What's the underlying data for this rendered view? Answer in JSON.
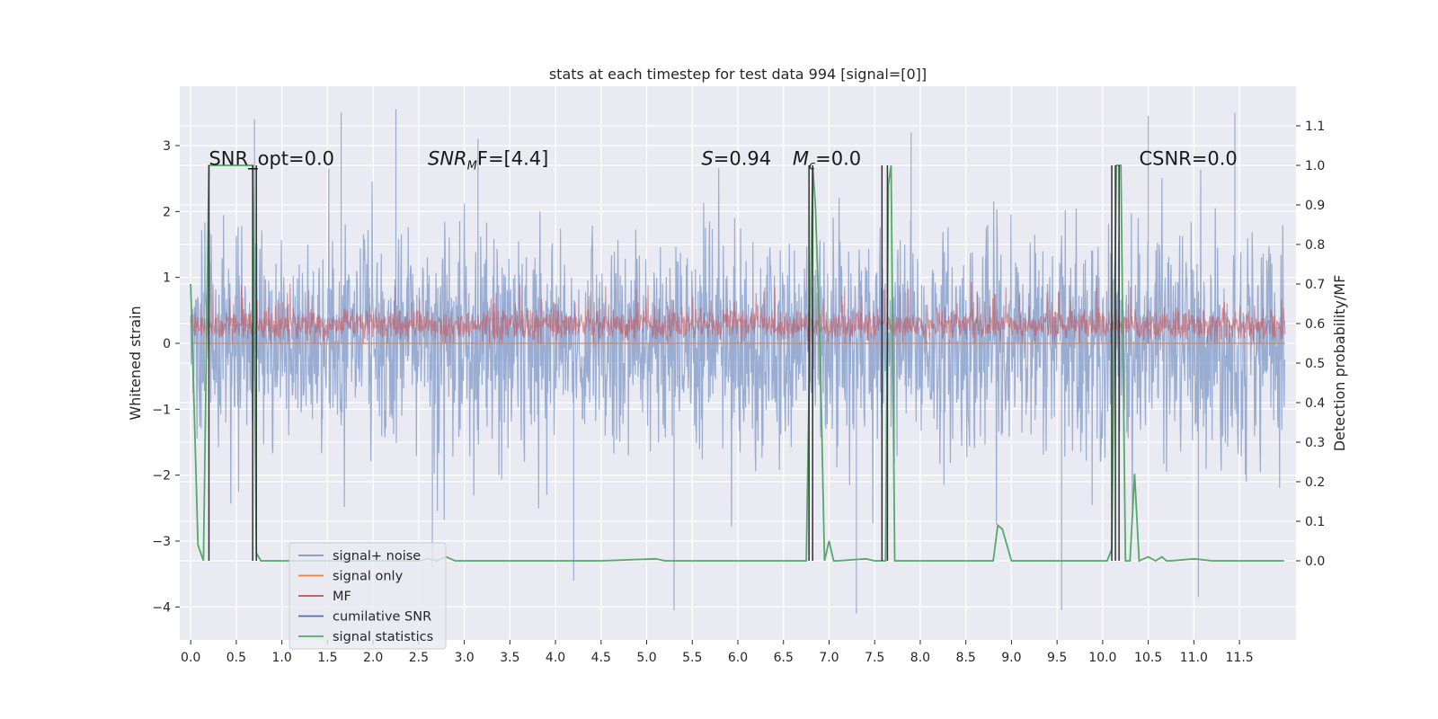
{
  "chart_data": {
    "type": "line",
    "title": "stats at each timestep for test data 994 [signal=[0]]",
    "xlabel": "",
    "ylabel": "Whitened strain",
    "ylabel_right": "Detection probability/MF",
    "xlim": [
      -0.12,
      12.12
    ],
    "ylim": [
      -4.5,
      3.9
    ],
    "ylim_right": [
      -0.2,
      1.2
    ],
    "x_ticks": [
      0.0,
      0.5,
      1.0,
      1.5,
      2.0,
      2.5,
      3.0,
      3.5,
      4.0,
      4.5,
      5.0,
      5.5,
      6.0,
      6.5,
      7.0,
      7.5,
      8.0,
      8.5,
      9.0,
      9.5,
      10.0,
      10.5,
      11.0,
      11.5
    ],
    "x_tick_labels": [
      "0.0",
      "0.5",
      "1.0",
      "1.5",
      "2.0",
      "2.5",
      "3.0",
      "3.5",
      "4.0",
      "4.5",
      "5.0",
      "5.5",
      "6.0",
      "6.5",
      "7.0",
      "7.5",
      "8.0",
      "8.5",
      "9.0",
      "9.5",
      "10.0",
      "10.5",
      "11.0",
      "11.5"
    ],
    "y_ticks": [
      -4,
      -3,
      -2,
      -1,
      0,
      1,
      2,
      3
    ],
    "y_tick_labels": [
      "−4",
      "−3",
      "−2",
      "−1",
      "0",
      "1",
      "2",
      "3"
    ],
    "y_ticks_right": [
      0.0,
      0.1,
      0.2,
      0.3,
      0.4,
      0.5,
      0.6,
      0.7,
      0.8,
      0.9,
      1.0,
      1.1
    ],
    "y_tick_labels_right": [
      "0.0",
      "0.1",
      "0.2",
      "0.3",
      "0.4",
      "0.5",
      "0.6",
      "0.7",
      "0.8",
      "0.9",
      "1.0",
      "1.1"
    ],
    "grid": true,
    "legend_position": "lower-left",
    "legend": [
      {
        "label": "signal+ noise",
        "color": "#7e97c7"
      },
      {
        "label": "signal only",
        "color": "#dd8452"
      },
      {
        "label": "MF",
        "color": "#c44e52"
      },
      {
        "label": "cumilative SNR",
        "color": "#4c72b0"
      },
      {
        "label": "signal statistics",
        "color": "#55a868"
      }
    ],
    "annotations": [
      {
        "text": "SNR_opt=0.0",
        "x": 0.2,
        "y": 2.8
      },
      {
        "text": "SNR",
        "sub": "M",
        "tail": "F=[4.4]",
        "italic_main": true,
        "x": 2.6,
        "y": 2.8
      },
      {
        "text": "S",
        "tail": "=0.94",
        "italic_main": true,
        "x": 5.6,
        "y": 2.8
      },
      {
        "text": "M",
        "sub": "c",
        "tail": "=0.0",
        "italic_main": true,
        "x": 6.6,
        "y": 2.8
      },
      {
        "text": "CSNR=0.0",
        "x": 10.4,
        "y": 2.8
      }
    ],
    "series": [
      {
        "name": "signal+ noise",
        "axis": "left",
        "style": "noise",
        "range": [
          0,
          12.0
        ],
        "amplitude": 1.55,
        "peaks": [
          [
            0.2,
            2.7
          ],
          [
            0.7,
            3.4
          ],
          [
            1.65,
            3.5
          ],
          [
            2.25,
            3.55
          ],
          [
            2.65,
            -3.4
          ],
          [
            4.2,
            -3.6
          ],
          [
            5.3,
            -4.05
          ],
          [
            7.3,
            -4.1
          ],
          [
            9.55,
            -4.05
          ],
          [
            11.05,
            -3.85
          ],
          [
            11.45,
            3.5
          ],
          [
            10.5,
            3.45
          ],
          [
            3.15,
            3.1
          ],
          [
            7.9,
            3.2
          ]
        ]
      },
      {
        "name": "signal only",
        "axis": "left",
        "values_constant": 0.0,
        "range": [
          0,
          12.0
        ]
      },
      {
        "name": "MF",
        "axis": "left",
        "style": "mf",
        "range": [
          0,
          12.0
        ],
        "base": 0.28,
        "amplitude": 0.3
      },
      {
        "name": "cumilative SNR",
        "axis": "left",
        "values": []
      },
      {
        "name": "signal statistics",
        "axis": "right",
        "x": [
          0.0,
          0.08,
          0.14,
          0.2,
          0.25,
          0.68,
          0.72,
          0.77,
          0.8,
          2.5,
          2.6,
          2.7,
          2.8,
          2.9,
          4.5,
          5.1,
          5.2,
          5.8,
          6.75,
          6.82,
          6.85,
          6.9,
          6.95,
          7.0,
          7.05,
          7.1,
          7.4,
          7.5,
          7.62,
          7.65,
          7.68,
          7.72,
          7.75,
          8.8,
          8.85,
          8.9,
          8.95,
          9.0,
          9.05,
          10.05,
          10.1,
          10.15,
          10.2,
          10.25,
          10.3,
          10.35,
          10.4,
          10.5,
          10.58,
          10.65,
          10.7,
          10.75,
          11.0,
          11.2,
          11.99
        ],
        "y": [
          0.7,
          0.04,
          0.0,
          1.0,
          1.0,
          1.0,
          0.02,
          0.0,
          0.0,
          0.0,
          0.005,
          0.0,
          0.01,
          0.0,
          0.0,
          0.005,
          0.0,
          0.0,
          0.0,
          1.0,
          0.9,
          0.55,
          0.0,
          0.05,
          0.0,
          0.0,
          0.005,
          0.0,
          0.0,
          0.95,
          1.0,
          0.0,
          0.0,
          0.0,
          0.09,
          0.08,
          0.04,
          0.0,
          0.0,
          0.0,
          0.03,
          1.0,
          1.0,
          0.0,
          0.0,
          0.22,
          0.0,
          0.01,
          0.0,
          0.01,
          0.0,
          0.0,
          0.005,
          0.0,
          0.0
        ]
      },
      {
        "name": "",
        "axis": "right",
        "style": "vlines",
        "x": [
          0.2,
          0.68,
          0.72,
          6.78,
          6.82,
          7.58,
          7.64,
          10.1,
          10.14,
          10.18
        ],
        "y_range": [
          0.0,
          1.0
        ]
      }
    ]
  }
}
